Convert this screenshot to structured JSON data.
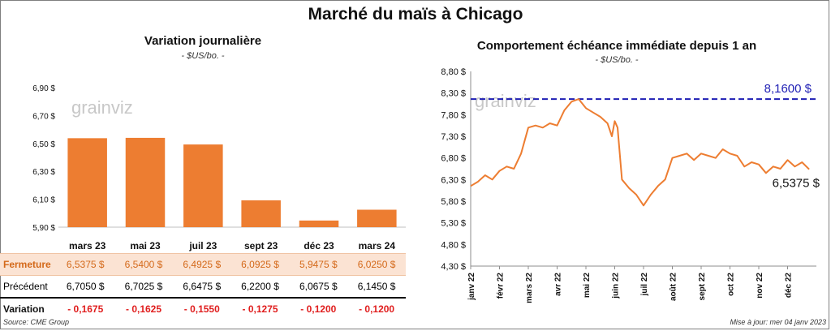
{
  "title": "Marché du maïs à Chicago",
  "left_panel": {
    "title": "Variation journalière",
    "unit": "- $US/bo. -"
  },
  "right_panel": {
    "title": "Comportement échéance immédiate depuis 1 an",
    "unit": "- $US/bo. -"
  },
  "watermark": "grainviz",
  "table": {
    "rows": [
      {
        "label": "Fermeture",
        "values": [
          "6,5375  $",
          "6,5400  $",
          "6,4925  $",
          "6,0925  $",
          "5,9475  $",
          "6,0250  $"
        ]
      },
      {
        "label": "Précédent",
        "values": [
          "6,7050  $",
          "6,7025  $",
          "6,6475  $",
          "6,2200  $",
          "6,0675  $",
          "6,1450  $"
        ]
      },
      {
        "label": "Variation",
        "values": [
          "- 0,1675",
          "- 0,1625",
          "- 0,1550",
          "- 0,1275",
          "- 0,1200",
          "- 0,1200"
        ]
      }
    ]
  },
  "footer": {
    "source": "Source: CME Group",
    "updated": "Mise à jour: mer 04 janv 2023"
  },
  "colors": {
    "bar": "#ed7d31",
    "line": "#ed7d31",
    "dashed": "#1f1fb4",
    "negative": "#e01e1e"
  },
  "chart_data": [
    {
      "type": "bar",
      "title": "Variation journalière",
      "ylabel": "$US/bo.",
      "categories": [
        "mars 23",
        "mai 23",
        "juil 23",
        "sept 23",
        "déc 23",
        "mars 24"
      ],
      "values": [
        6.5375,
        6.54,
        6.4925,
        6.0925,
        5.9475,
        6.025
      ],
      "ylim": [
        5.9,
        6.9
      ],
      "yticks": [
        5.9,
        6.1,
        6.3,
        6.5,
        6.7,
        6.9
      ],
      "ytick_labels": [
        "5,90 $",
        "6,10 $",
        "6,30 $",
        "6,50 $",
        "6,70 $",
        "6,90 $"
      ]
    },
    {
      "type": "line",
      "title": "Comportement échéance immédiate depuis 1 an",
      "ylabel": "$US/bo.",
      "ylim": [
        4.3,
        8.8
      ],
      "yticks": [
        4.3,
        4.8,
        5.3,
        5.8,
        6.3,
        6.8,
        7.3,
        7.8,
        8.3,
        8.8
      ],
      "ytick_labels": [
        "4,30 $",
        "4,80 $",
        "5,30 $",
        "5,80 $",
        "6,30 $",
        "6,80 $",
        "7,30 $",
        "7,80 $",
        "8,30 $",
        "8,80 $"
      ],
      "xlabels": [
        "janv 22",
        "févr 22",
        "mars 22",
        "avr 22",
        "mai 22",
        "juin 22",
        "juil 22",
        "août 22",
        "sept 22",
        "oct 22",
        "nov 22",
        "déc 22"
      ],
      "x": [
        0,
        0.25,
        0.5,
        0.75,
        1.0,
        1.25,
        1.5,
        1.75,
        2.0,
        2.25,
        2.5,
        2.75,
        3.0,
        3.25,
        3.5,
        3.75,
        4.0,
        4.25,
        4.5,
        4.75,
        4.9,
        5.0,
        5.1,
        5.25,
        5.5,
        5.75,
        6.0,
        6.25,
        6.5,
        6.75,
        7.0,
        7.25,
        7.5,
        7.75,
        8.0,
        8.25,
        8.5,
        8.75,
        9.0,
        9.25,
        9.5,
        9.75,
        10.0,
        10.25,
        10.5,
        10.75,
        11.0,
        11.25,
        11.5,
        11.75
      ],
      "y": [
        6.15,
        6.25,
        6.4,
        6.3,
        6.5,
        6.6,
        6.55,
        6.9,
        7.5,
        7.55,
        7.5,
        7.6,
        7.55,
        7.9,
        8.1,
        8.16,
        7.95,
        7.85,
        7.75,
        7.6,
        7.3,
        7.65,
        7.5,
        6.3,
        6.1,
        5.95,
        5.7,
        5.95,
        6.15,
        6.3,
        6.8,
        6.85,
        6.9,
        6.75,
        6.9,
        6.85,
        6.8,
        7.0,
        6.9,
        6.85,
        6.6,
        6.7,
        6.65,
        6.45,
        6.6,
        6.55,
        6.75,
        6.6,
        6.7,
        6.5375
      ],
      "reference_line": {
        "value": 8.16,
        "label": "8,1600 $"
      },
      "last_label": "6,5375 $"
    }
  ]
}
